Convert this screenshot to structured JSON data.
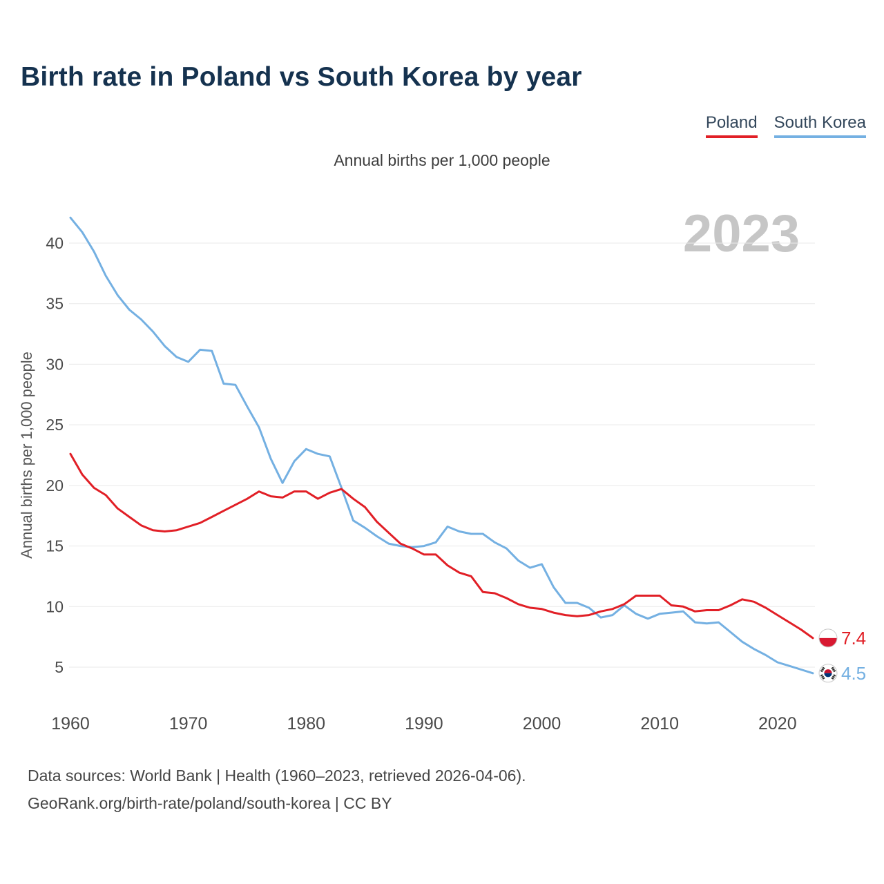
{
  "header": {
    "title": "Birth rate in Poland vs South Korea by year"
  },
  "chart_data": {
    "type": "line",
    "title": "Birth rate in Poland vs South Korea by year",
    "subtitle": "Annual births per 1,000 people",
    "ylabel": "Annual births per 1,000 people",
    "xlabel": "",
    "watermark": "2023",
    "grid": true,
    "legend_position": "top-right",
    "ylim": [
      4,
      43
    ],
    "yticks": [
      5,
      10,
      15,
      20,
      25,
      30,
      35,
      40
    ],
    "xticks": [
      1960,
      1970,
      1980,
      1990,
      2000,
      2010,
      2020
    ],
    "x": [
      1960,
      1961,
      1962,
      1963,
      1964,
      1965,
      1966,
      1967,
      1968,
      1969,
      1970,
      1971,
      1972,
      1973,
      1974,
      1975,
      1976,
      1977,
      1978,
      1979,
      1980,
      1981,
      1982,
      1983,
      1984,
      1985,
      1986,
      1987,
      1988,
      1989,
      1990,
      1991,
      1992,
      1993,
      1994,
      1995,
      1996,
      1997,
      1998,
      1999,
      2000,
      2001,
      2002,
      2003,
      2004,
      2005,
      2006,
      2007,
      2008,
      2009,
      2010,
      2011,
      2012,
      2013,
      2014,
      2015,
      2016,
      2017,
      2018,
      2019,
      2020,
      2021,
      2022,
      2023
    ],
    "series": [
      {
        "name": "Poland",
        "color": "#e11f26",
        "flag": "poland",
        "end_label": "7.4",
        "values": [
          22.6,
          20.9,
          19.8,
          19.2,
          18.1,
          17.4,
          16.7,
          16.3,
          16.2,
          16.3,
          16.6,
          16.9,
          17.4,
          17.9,
          18.4,
          18.9,
          19.5,
          19.1,
          19.0,
          19.5,
          19.5,
          18.9,
          19.4,
          19.7,
          18.9,
          18.2,
          17.0,
          16.1,
          15.2,
          14.8,
          14.3,
          14.3,
          13.4,
          12.8,
          12.5,
          11.2,
          11.1,
          10.7,
          10.2,
          9.9,
          9.8,
          9.5,
          9.3,
          9.2,
          9.3,
          9.6,
          9.8,
          10.2,
          10.9,
          10.9,
          10.9,
          10.1,
          10.0,
          9.6,
          9.7,
          9.7,
          10.1,
          10.6,
          10.4,
          9.9,
          9.3,
          8.7,
          8.1,
          7.4
        ]
      },
      {
        "name": "South Korea",
        "color": "#74b0e2",
        "flag": "south-korea",
        "end_label": "4.5",
        "values": [
          42.1,
          40.9,
          39.3,
          37.3,
          35.7,
          34.5,
          33.7,
          32.7,
          31.5,
          30.6,
          30.2,
          31.2,
          31.1,
          28.4,
          28.3,
          26.5,
          24.8,
          22.2,
          20.2,
          22.0,
          23.0,
          22.6,
          22.4,
          19.8,
          17.1,
          16.5,
          15.8,
          15.2,
          15.0,
          14.9,
          15.0,
          15.3,
          16.6,
          16.2,
          16.0,
          16.0,
          15.3,
          14.8,
          13.8,
          13.2,
          13.5,
          11.6,
          10.3,
          10.3,
          9.9,
          9.1,
          9.3,
          10.1,
          9.4,
          9.0,
          9.4,
          9.5,
          9.6,
          8.7,
          8.6,
          8.7,
          7.9,
          7.1,
          6.5,
          6.0,
          5.4,
          5.1,
          4.8,
          4.5
        ]
      }
    ]
  },
  "footer": {
    "line1": "Data sources: World Bank | Health (1960–2023, retrieved 2026-04-06).",
    "line2": "GeoRank.org/birth-rate/poland/south-korea | CC BY"
  }
}
